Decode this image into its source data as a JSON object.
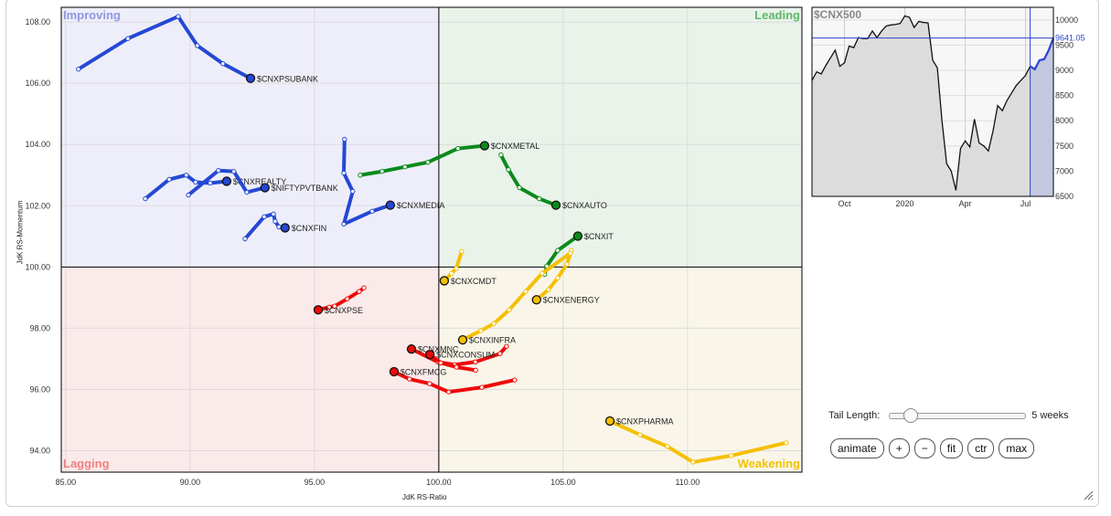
{
  "chart_data": {
    "type": "scatter",
    "subtype": "relative-rotation-graph",
    "xlabel": "JdK RS-Ratio",
    "ylabel": "JdK RS-Momentum",
    "xlim": [
      84.82,
      114.6
    ],
    "ylim": [
      93.3,
      108.48
    ],
    "x_ticks": [
      "85.00",
      "90.00",
      "95.00",
      "100.00",
      "105.00",
      "110.00"
    ],
    "x_tick_values": [
      85,
      90,
      95,
      100,
      105,
      110
    ],
    "y_ticks": [
      "94.00",
      "96.00",
      "98.00",
      "100.00",
      "102.00",
      "104.00",
      "106.00",
      "108.00"
    ],
    "y_tick_values": [
      94,
      96,
      98,
      100,
      102,
      104,
      106,
      108
    ],
    "grid": true,
    "center": [
      100,
      100
    ],
    "quadrants": {
      "improving": {
        "label": "Improving",
        "color": "#8f97e0",
        "bg": "#eeeefa"
      },
      "leading": {
        "label": "Leading",
        "color": "#5fb86a",
        "bg": "#e9f3ea"
      },
      "lagging": {
        "label": "Lagging",
        "color": "#f08080",
        "bg": "#fbeaea"
      },
      "weakening": {
        "label": "Weakening",
        "color": "#f2c200",
        "bg": "#f9f6e9"
      }
    },
    "series_colors": {
      "improving": "#2448d4",
      "leading": "#0b8a1c",
      "lagging": "#ee0a0a",
      "weakening": "#f5c000"
    },
    "series": [
      {
        "name": "$CNXPSUBANK",
        "quadrant": "improving",
        "points": [
          [
            85.51,
            106.46
          ],
          [
            87.5,
            107.46
          ],
          [
            89.52,
            108.18
          ],
          [
            90.29,
            107.23
          ],
          [
            91.32,
            106.64
          ],
          [
            92.43,
            106.16
          ]
        ]
      },
      {
        "name": "$CNXREALTY",
        "quadrant": "improving",
        "points": [
          [
            88.2,
            102.23
          ],
          [
            89.16,
            102.86
          ],
          [
            89.85,
            103.0
          ],
          [
            90.22,
            102.77
          ],
          [
            90.81,
            102.74
          ],
          [
            91.47,
            102.8
          ]
        ]
      },
      {
        "name": "$NIFTYPVTBANK",
        "quadrant": "improving",
        "points": [
          [
            89.93,
            102.35
          ],
          [
            91.14,
            103.15
          ],
          [
            91.76,
            103.12
          ],
          [
            92.28,
            102.44
          ],
          [
            93.01,
            102.59
          ]
        ]
      },
      {
        "name": "$CNXFIN",
        "quadrant": "improving",
        "points": [
          [
            92.21,
            100.92
          ],
          [
            92.98,
            101.64
          ],
          [
            93.35,
            101.73
          ],
          [
            93.42,
            101.49
          ],
          [
            93.57,
            101.31
          ],
          [
            93.82,
            101.28
          ]
        ]
      },
      {
        "name": "$CNXMEDIA",
        "quadrant": "improving",
        "points": [
          [
            96.21,
            104.17
          ],
          [
            96.18,
            103.07
          ],
          [
            96.54,
            102.47
          ],
          [
            96.18,
            101.4
          ],
          [
            97.32,
            101.82
          ],
          [
            98.05,
            102.02
          ]
        ]
      },
      {
        "name": "$CNXMETAL",
        "quadrant": "leading",
        "points": [
          [
            96.84,
            103.0
          ],
          [
            97.72,
            103.12
          ],
          [
            98.64,
            103.27
          ],
          [
            99.56,
            103.42
          ],
          [
            100.77,
            103.87
          ],
          [
            101.84,
            103.96
          ]
        ]
      },
      {
        "name": "$CNXAUTO",
        "quadrant": "leading",
        "points": [
          [
            102.5,
            103.66
          ],
          [
            102.8,
            103.18
          ],
          [
            103.24,
            102.59
          ],
          [
            104.04,
            102.23
          ],
          [
            104.71,
            102.02
          ]
        ]
      },
      {
        "name": "$CNXIT",
        "quadrant": "leading",
        "points": [
          [
            104.26,
            99.76
          ],
          [
            104.34,
            100.03
          ],
          [
            104.78,
            100.54
          ],
          [
            105.59,
            101.01
          ]
        ]
      },
      {
        "name": "$CNXCMDT",
        "quadrant": "weakening",
        "points": [
          [
            100.92,
            100.51
          ],
          [
            100.7,
            99.95
          ],
          [
            100.51,
            99.79
          ],
          [
            100.22,
            99.55
          ]
        ]
      },
      {
        "name": "$CNXENERGY",
        "quadrant": "weakening",
        "points": [
          [
            105.33,
            100.54
          ],
          [
            105.15,
            100.09
          ],
          [
            104.78,
            99.64
          ],
          [
            104.41,
            99.26
          ],
          [
            103.93,
            98.93
          ]
        ]
      },
      {
        "name": "$CNXINFRA",
        "quadrant": "weakening",
        "points": [
          [
            105.29,
            100.45
          ],
          [
            104.15,
            99.79
          ],
          [
            103.49,
            99.2
          ],
          [
            102.83,
            98.6
          ],
          [
            102.21,
            98.15
          ],
          [
            101.69,
            97.92
          ],
          [
            100.96,
            97.62
          ]
        ]
      },
      {
        "name": "$CNXPHARMA",
        "quadrant": "weakening",
        "points": [
          [
            113.97,
            94.26
          ],
          [
            111.76,
            93.84
          ],
          [
            110.22,
            93.63
          ],
          [
            109.19,
            94.14
          ],
          [
            108.09,
            94.52
          ],
          [
            106.88,
            94.97
          ]
        ]
      },
      {
        "name": "$CNXPSE",
        "quadrant": "lagging",
        "points": [
          [
            96.99,
            99.32
          ],
          [
            96.8,
            99.2
          ],
          [
            96.32,
            98.96
          ],
          [
            95.81,
            98.72
          ],
          [
            95.59,
            98.69
          ],
          [
            95.15,
            98.6
          ]
        ]
      },
      {
        "name": "$CNXMNC",
        "quadrant": "lagging",
        "points": [
          [
            102.72,
            97.41
          ],
          [
            102.46,
            97.17
          ],
          [
            101.47,
            96.9
          ],
          [
            100.63,
            96.81
          ],
          [
            99.96,
            96.9
          ],
          [
            98.9,
            97.32
          ]
        ]
      },
      {
        "name": "$CNXCONSUM",
        "quadrant": "lagging",
        "points": [
          [
            101.48,
            96.63
          ],
          [
            100.71,
            96.73
          ],
          [
            100.08,
            96.87
          ],
          [
            99.64,
            97.14
          ]
        ]
      },
      {
        "name": "$CNXFMCG",
        "quadrant": "lagging",
        "points": [
          [
            103.05,
            96.31
          ],
          [
            101.73,
            96.07
          ],
          [
            100.4,
            95.92
          ],
          [
            99.63,
            96.19
          ],
          [
            98.82,
            96.34
          ],
          [
            98.2,
            96.58
          ]
        ]
      }
    ],
    "benchmark": {
      "type": "area",
      "title": "$CNX500",
      "current_value": "9641.05",
      "x_ticks": [
        "Oct",
        "2020",
        "Apr",
        "Jul"
      ],
      "x_tick_index": [
        7,
        20,
        33,
        46
      ],
      "y_ticks": [
        "10000",
        "9500",
        "9000",
        "8500",
        "8000",
        "7500",
        "7000",
        "6500"
      ],
      "ylim": [
        6500,
        10250
      ],
      "highlight_from_index": 47,
      "values": [
        8800,
        8970,
        8930,
        9100,
        9250,
        9400,
        9080,
        9150,
        9480,
        9450,
        9650,
        9630,
        9630,
        9780,
        9650,
        9780,
        9880,
        9900,
        9910,
        9930,
        10080,
        10050,
        9850,
        9970,
        9950,
        9940,
        9200,
        9050,
        8000,
        7150,
        7000,
        6620,
        7450,
        7600,
        7480,
        8030,
        7560,
        7500,
        7400,
        7800,
        8300,
        8200,
        8400,
        8550,
        8700,
        8800,
        8900,
        9080,
        9020,
        9200,
        9220,
        9400,
        9641.05
      ]
    }
  },
  "controls": {
    "tail_length_label": "Tail Length:",
    "tail_length_value": 5,
    "tail_length_text": "5 weeks",
    "buttons": [
      "animate",
      "+",
      "−",
      "fit",
      "ctr",
      "max"
    ]
  }
}
